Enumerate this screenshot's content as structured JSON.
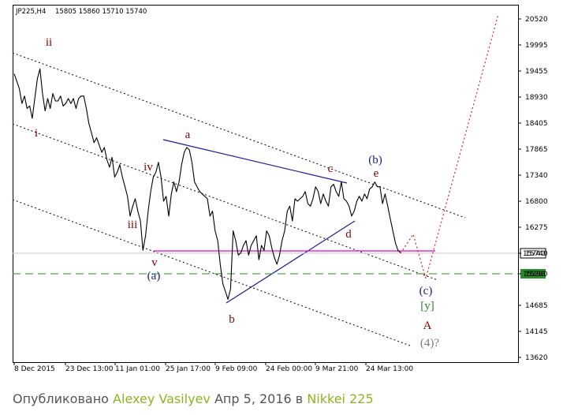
{
  "header": {
    "symbol": "JP225,H4",
    "ohlc": "15805 15860 15710 15740"
  },
  "caption": {
    "prefix": "Опубликовано",
    "author": "Alexey Vasilyev",
    "date": "Апр 5, 2016",
    "in_word": "в",
    "instrument": "Nikkei 225"
  },
  "colors": {
    "price": "#000000",
    "wave_red": "#8b0000",
    "wave_blue": "#1b1b8a",
    "wave_green": "#2e7d32",
    "wave_gray": "#7a7a7a",
    "magenta": "#e000e0",
    "green_dash": "#2a8c2a",
    "red_dotted": "#e02020",
    "channel": "#000000",
    "trendline": "#1b1b9e"
  },
  "chart_data": {
    "type": "line",
    "title": "JP225,H4",
    "x_tick_labels": [
      "8 Dec 2015",
      "23 Dec 13:00",
      "11 Jan 01:00",
      "25 Jan 17:00",
      "9 Feb 09:00",
      "24 Feb 00:00",
      "9 Mar 21:00",
      "24 Mar 13:00"
    ],
    "y_tick_labels": [
      "20520",
      "19995",
      "19455",
      "18930",
      "18405",
      "17865",
      "17340",
      "16800",
      "16275",
      "15740",
      "15290",
      "14685",
      "14145",
      "13620"
    ],
    "ylim": [
      13620,
      20520
    ],
    "price_labels": [
      {
        "value": 15740,
        "text": "15740",
        "style": "current"
      },
      {
        "value": 15290,
        "text": "15290",
        "style": "level"
      }
    ],
    "series": [
      {
        "values": [
          19400,
          19250,
          19100,
          18800,
          18950,
          18700,
          18750,
          18500,
          18900,
          19300,
          19500,
          19000,
          18650,
          18900,
          18700,
          19000,
          18850,
          18850,
          18950,
          18750,
          18800,
          18900,
          18800,
          18900,
          18700,
          18900,
          18950,
          18950,
          18700,
          18400,
          18200,
          18000,
          18100,
          17950,
          17800,
          17900,
          17650,
          17500,
          17700,
          17300,
          17400,
          17550,
          17300,
          17100,
          16900,
          16500,
          16700,
          16850,
          16600,
          16400,
          15800,
          16100,
          16600,
          17000,
          17300,
          17400,
          17600,
          17300,
          16800,
          16900,
          16500,
          16950,
          17200,
          17000,
          17200,
          17550,
          17800,
          17900,
          17850,
          17600,
          17200,
          17100,
          17000,
          16950,
          16900,
          16850,
          16500,
          16600,
          16200,
          16000,
          15500,
          15100,
          14950,
          14800,
          15000,
          16200,
          16000,
          15700,
          15750,
          15900,
          16000,
          15700,
          15900,
          16000,
          16100,
          15600,
          15900,
          15800,
          16200,
          16100,
          15850,
          15650,
          15500,
          15700,
          16000,
          16200,
          16600,
          16700,
          16400,
          16850,
          16800,
          16850,
          16900,
          17000,
          16750,
          16700,
          16850,
          17100,
          17000,
          16750,
          16950,
          16800,
          16700,
          17100,
          17150,
          17000,
          16900,
          17200,
          16850,
          16800,
          16700,
          16500,
          16600,
          16800,
          16900,
          16800,
          16950,
          16850,
          17050,
          17100,
          17200,
          17100,
          17100,
          16750,
          16950,
          16700,
          16450,
          16200,
          15950,
          15800,
          15750
        ]
      }
    ],
    "levels": [
      {
        "value": 15740,
        "label": "horizontal level at 15740"
      },
      {
        "value": 15290,
        "label": "dashed level at 15290"
      }
    ],
    "wave_labels": [
      {
        "text": "ii",
        "color": "wave_red"
      },
      {
        "text": "i",
        "color": "wave_red"
      },
      {
        "text": "iv",
        "color": "wave_red"
      },
      {
        "text": "iii",
        "color": "wave_red"
      },
      {
        "text": "v",
        "color": "wave_red"
      },
      {
        "text": "(a)",
        "color": "wave_blue"
      },
      {
        "text": "a",
        "color": "wave_red"
      },
      {
        "text": "b",
        "color": "wave_red"
      },
      {
        "text": "c",
        "color": "wave_red"
      },
      {
        "text": "d",
        "color": "wave_red"
      },
      {
        "text": "e",
        "color": "wave_red"
      },
      {
        "text": "(b)",
        "color": "wave_blue"
      },
      {
        "text": "(c)",
        "color": "wave_blue"
      },
      {
        "text": "[y]",
        "color": "wave_green"
      },
      {
        "text": "A",
        "color": "wave_red"
      },
      {
        "text": "(4)?",
        "color": "wave_gray"
      }
    ]
  }
}
